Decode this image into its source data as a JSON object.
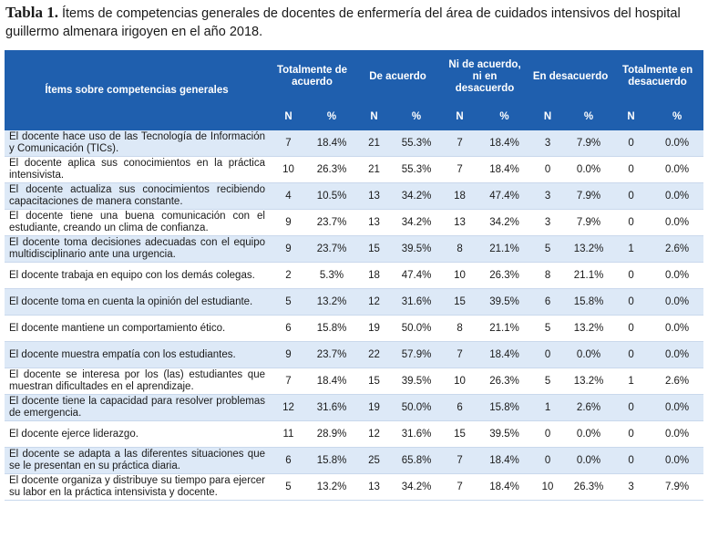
{
  "caption": {
    "label": "Tabla 1.",
    "text": "Ítems de competencias generales de docentes de enfermería del área de cuidados intensivos del hospital guillermo almenara irigoyen en el año 2018."
  },
  "table": {
    "item_header": "Ítems sobre competencias generales",
    "groups": [
      "Totalmente de acuerdo",
      "De acuerdo",
      "Ni de acuerdo, ni en desacuerdo",
      "En desacuerdo",
      "Totalmente en desacuerdo"
    ],
    "sub_n": "N",
    "sub_pct": "%",
    "rows": [
      {
        "item": "El docente hace uso de las Tecnología de Información y Comunicación (TICs).",
        "v": [
          "7",
          "18.4%",
          "21",
          "55.3%",
          "7",
          "18.4%",
          "3",
          "7.9%",
          "0",
          "0.0%"
        ]
      },
      {
        "item": "El docente aplica sus conocimientos en la práctica intensivista.",
        "v": [
          "10",
          "26.3%",
          "21",
          "55.3%",
          "7",
          "18.4%",
          "0",
          "0.0%",
          "0",
          "0.0%"
        ]
      },
      {
        "item": "El docente actualiza sus conocimientos recibiendo capacitaciones de manera constante.",
        "v": [
          "4",
          "10.5%",
          "13",
          "34.2%",
          "18",
          "47.4%",
          "3",
          "7.9%",
          "0",
          "0.0%"
        ]
      },
      {
        "item": "El docente tiene una buena comunicación con el estudiante, creando un clima de confianza.",
        "v": [
          "9",
          "23.7%",
          "13",
          "34.2%",
          "13",
          "34.2%",
          "3",
          "7.9%",
          "0",
          "0.0%"
        ]
      },
      {
        "item": "El docente toma decisiones adecuadas con el equipo multidisciplinario ante una urgencia.",
        "v": [
          "9",
          "23.7%",
          "15",
          "39.5%",
          "8",
          "21.1%",
          "5",
          "13.2%",
          "1",
          "2.6%"
        ]
      },
      {
        "item": "El docente trabaja en equipo con los demás colegas.",
        "v": [
          "2",
          "5.3%",
          "18",
          "47.4%",
          "10",
          "26.3%",
          "8",
          "21.1%",
          "0",
          "0.0%"
        ]
      },
      {
        "item": "El docente toma en cuenta la opinión del estudiante.",
        "v": [
          "5",
          "13.2%",
          "12",
          "31.6%",
          "15",
          "39.5%",
          "6",
          "15.8%",
          "0",
          "0.0%"
        ]
      },
      {
        "item": "El docente mantiene un comportamiento ético.",
        "v": [
          "6",
          "15.8%",
          "19",
          "50.0%",
          "8",
          "21.1%",
          "5",
          "13.2%",
          "0",
          "0.0%"
        ]
      },
      {
        "item": "El docente muestra empatía con los estudiantes.",
        "v": [
          "9",
          "23.7%",
          "22",
          "57.9%",
          "7",
          "18.4%",
          "0",
          "0.0%",
          "0",
          "0.0%"
        ]
      },
      {
        "item": "El docente se interesa por los (las) estudiantes que muestran dificultades en el aprendizaje.",
        "v": [
          "7",
          "18.4%",
          "15",
          "39.5%",
          "10",
          "26.3%",
          "5",
          "13.2%",
          "1",
          "2.6%"
        ]
      },
      {
        "item": "El docente tiene la capacidad para resolver problemas de emergencia.",
        "v": [
          "12",
          "31.6%",
          "19",
          "50.0%",
          "6",
          "15.8%",
          "1",
          "2.6%",
          "0",
          "0.0%"
        ]
      },
      {
        "item": "El docente ejerce liderazgo.",
        "v": [
          "11",
          "28.9%",
          "12",
          "31.6%",
          "15",
          "39.5%",
          "0",
          "0.0%",
          "0",
          "0.0%"
        ]
      },
      {
        "item": "El docente se adapta a las diferentes situaciones que se le presentan en su práctica diaria.",
        "v": [
          "6",
          "15.8%",
          "25",
          "65.8%",
          "7",
          "18.4%",
          "0",
          "0.0%",
          "0",
          "0.0%"
        ]
      },
      {
        "item": "El docente organiza y distribuye su tiempo para ejercer su labor en la práctica intensivista y docente.",
        "v": [
          "5",
          "13.2%",
          "13",
          "34.2%",
          "7",
          "18.4%",
          "10",
          "26.3%",
          "3",
          "7.9%"
        ]
      }
    ]
  }
}
